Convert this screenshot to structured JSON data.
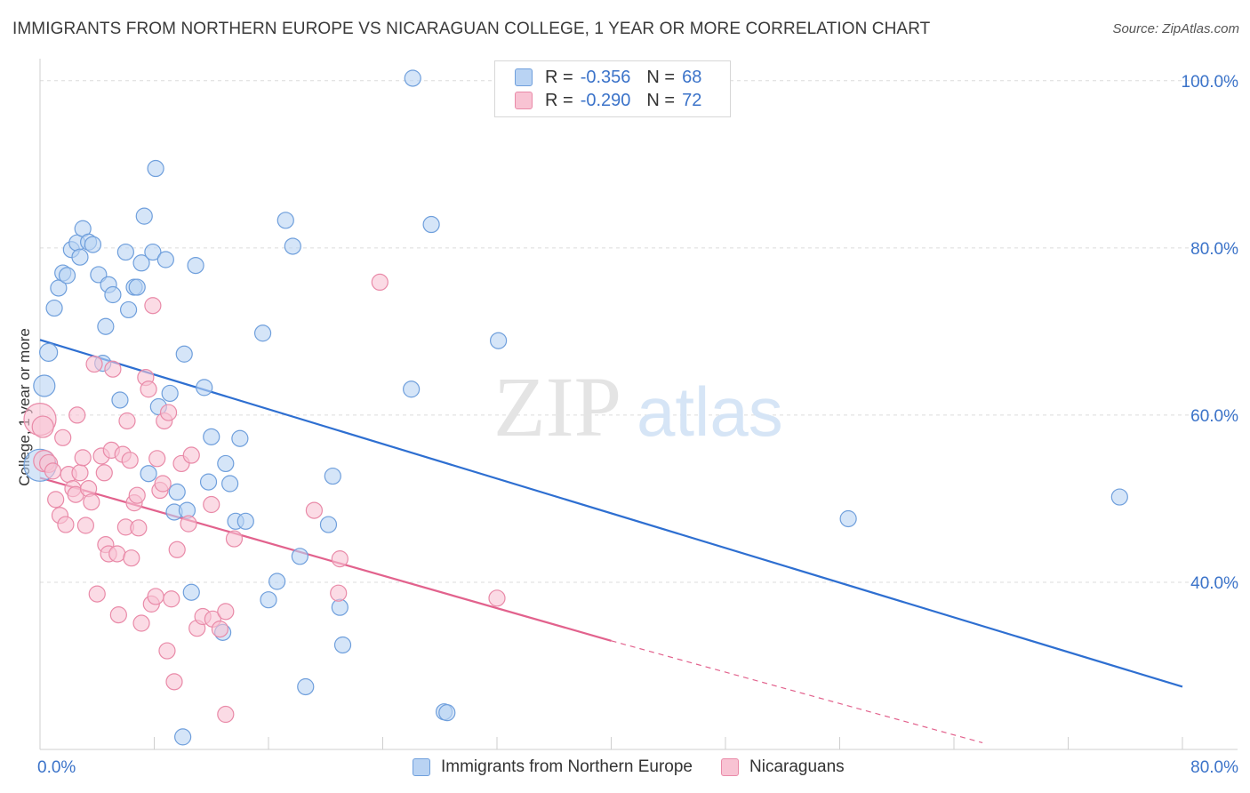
{
  "title": "IMMIGRANTS FROM NORTHERN EUROPE VS NICARAGUAN COLLEGE, 1 YEAR OR MORE CORRELATION CHART",
  "source": "Source: ZipAtlas.com",
  "watermark": {
    "zip": "ZIP",
    "atlas": "atlas"
  },
  "colors": {
    "blue_fill": "#b9d3f3",
    "blue_stroke": "#6f9fdc",
    "blue_line": "#2e6fd1",
    "pink_fill": "#f8c3d3",
    "pink_stroke": "#e98aa8",
    "pink_line": "#e2628d",
    "axis_text": "#3b73c9",
    "grid": "#dcdcdc"
  },
  "legend_top": [
    {
      "swatch": "blue",
      "r_label": "R =",
      "r_value": "-0.356",
      "n_label": "N =",
      "n_value": "68"
    },
    {
      "swatch": "pink",
      "r_label": "R =",
      "r_value": "-0.290",
      "n_label": "N =",
      "n_value": "72"
    }
  ],
  "chart_data": {
    "type": "scatter",
    "title": "IMMIGRANTS FROM NORTHERN EUROPE VS NICARAGUAN COLLEGE, 1 YEAR OR MORE CORRELATION CHART",
    "xlabel": "",
    "ylabel": "College, 1 year or more",
    "xlim": [
      0,
      80
    ],
    "ylim": [
      20,
      102
    ],
    "x_tick_labels": [
      "0.0%",
      "80.0%"
    ],
    "y_ticks": [
      40,
      60,
      80,
      100
    ],
    "y_tick_labels": [
      "40.0%",
      "60.0%",
      "80.0%",
      "100.0%"
    ],
    "grid": true,
    "legend_position": "bottom-center",
    "series": [
      {
        "name": "Immigrants from Northern Europe",
        "color": "blue",
        "points": [
          [
            0.0,
            54.0,
            18
          ],
          [
            0.3,
            63.5,
            12
          ],
          [
            0.6,
            67.5,
            10
          ],
          [
            1.0,
            72.8,
            9
          ],
          [
            1.3,
            75.2,
            9
          ],
          [
            1.6,
            77.0,
            9
          ],
          [
            1.9,
            76.7,
            9
          ],
          [
            2.2,
            79.8,
            9
          ],
          [
            2.6,
            80.6,
            9
          ],
          [
            2.8,
            78.9,
            9
          ],
          [
            3.0,
            82.3,
            9
          ],
          [
            3.4,
            80.7,
            9
          ],
          [
            3.7,
            80.4,
            9
          ],
          [
            4.1,
            76.8,
            9
          ],
          [
            4.4,
            66.2,
            9
          ],
          [
            4.6,
            70.6,
            9
          ],
          [
            4.8,
            75.6,
            9
          ],
          [
            5.1,
            74.4,
            9
          ],
          [
            5.6,
            61.8,
            9
          ],
          [
            6.0,
            79.5,
            9
          ],
          [
            6.2,
            72.6,
            9
          ],
          [
            6.6,
            75.3,
            9
          ],
          [
            6.8,
            75.3,
            9
          ],
          [
            7.1,
            78.2,
            9
          ],
          [
            7.3,
            83.8,
            9
          ],
          [
            7.6,
            53.0,
            9
          ],
          [
            7.9,
            79.5,
            9
          ],
          [
            8.1,
            89.5,
            9
          ],
          [
            8.3,
            61.0,
            9
          ],
          [
            8.8,
            78.6,
            9
          ],
          [
            9.1,
            62.6,
            9
          ],
          [
            9.4,
            48.4,
            9
          ],
          [
            9.6,
            50.8,
            9
          ],
          [
            10.1,
            67.3,
            9
          ],
          [
            10.3,
            48.6,
            9
          ],
          [
            10.6,
            38.8,
            9
          ],
          [
            10.9,
            77.9,
            9
          ],
          [
            11.5,
            63.3,
            9
          ],
          [
            11.8,
            52.0,
            9
          ],
          [
            12.0,
            57.4,
            9
          ],
          [
            12.8,
            34.0,
            9
          ],
          [
            13.0,
            54.2,
            9
          ],
          [
            13.3,
            51.8,
            9
          ],
          [
            13.7,
            47.3,
            9
          ],
          [
            14.0,
            57.2,
            9
          ],
          [
            14.4,
            47.3,
            9
          ],
          [
            15.6,
            69.8,
            9
          ],
          [
            16.0,
            37.9,
            9
          ],
          [
            16.6,
            40.1,
            9
          ],
          [
            17.2,
            83.3,
            9
          ],
          [
            17.7,
            80.2,
            9
          ],
          [
            18.2,
            43.1,
            9
          ],
          [
            18.6,
            27.5,
            9
          ],
          [
            20.2,
            46.9,
            9
          ],
          [
            20.5,
            52.7,
            9
          ],
          [
            21.0,
            37.0,
            9
          ],
          [
            21.2,
            32.5,
            9
          ],
          [
            26.0,
            63.1,
            9
          ],
          [
            26.1,
            100.3,
            9
          ],
          [
            27.4,
            82.8,
            9
          ],
          [
            28.3,
            24.5,
            9
          ],
          [
            28.5,
            24.4,
            9
          ],
          [
            32.1,
            68.9,
            9
          ],
          [
            10.0,
            21.5,
            9
          ],
          [
            56.6,
            47.6,
            9
          ],
          [
            75.6,
            50.2,
            9
          ]
        ],
        "trend": {
          "x1": 0,
          "y1": 69.0,
          "x2": 80,
          "y2": 27.5
        }
      },
      {
        "name": "Nicaraguans",
        "color": "pink",
        "points": [
          [
            0.0,
            59.5,
            18
          ],
          [
            0.2,
            58.6,
            12
          ],
          [
            0.3,
            54.5,
            12
          ],
          [
            0.6,
            54.2,
            10
          ],
          [
            0.9,
            53.3,
            9
          ],
          [
            1.1,
            49.9,
            9
          ],
          [
            1.4,
            48.0,
            9
          ],
          [
            1.6,
            57.3,
            9
          ],
          [
            1.8,
            46.9,
            9
          ],
          [
            2.0,
            52.9,
            9
          ],
          [
            2.3,
            51.2,
            9
          ],
          [
            2.5,
            50.5,
            9
          ],
          [
            2.6,
            60.0,
            9
          ],
          [
            2.8,
            53.1,
            9
          ],
          [
            3.0,
            54.9,
            9
          ],
          [
            3.2,
            46.8,
            9
          ],
          [
            3.4,
            51.2,
            9
          ],
          [
            3.6,
            49.6,
            9
          ],
          [
            3.8,
            66.1,
            9
          ],
          [
            4.0,
            38.6,
            9
          ],
          [
            4.3,
            55.1,
            9
          ],
          [
            4.5,
            53.1,
            9
          ],
          [
            4.6,
            44.5,
            9
          ],
          [
            4.8,
            43.4,
            9
          ],
          [
            5.0,
            55.8,
            9
          ],
          [
            5.1,
            65.5,
            9
          ],
          [
            5.4,
            43.4,
            9
          ],
          [
            5.5,
            36.1,
            9
          ],
          [
            5.8,
            55.3,
            9
          ],
          [
            6.0,
            46.6,
            9
          ],
          [
            6.1,
            59.3,
            9
          ],
          [
            6.3,
            54.6,
            9
          ],
          [
            6.4,
            42.9,
            9
          ],
          [
            6.6,
            49.5,
            9
          ],
          [
            6.8,
            50.4,
            9
          ],
          [
            6.9,
            46.5,
            9
          ],
          [
            7.1,
            35.1,
            9
          ],
          [
            7.4,
            64.5,
            9
          ],
          [
            7.6,
            63.1,
            9
          ],
          [
            7.8,
            37.4,
            9
          ],
          [
            7.9,
            73.1,
            9
          ],
          [
            8.1,
            38.3,
            9
          ],
          [
            8.2,
            54.8,
            9
          ],
          [
            8.4,
            51.0,
            9
          ],
          [
            8.6,
            51.8,
            9
          ],
          [
            8.7,
            59.3,
            9
          ],
          [
            8.9,
            31.8,
            9
          ],
          [
            9.0,
            60.3,
            9
          ],
          [
            9.2,
            38.0,
            9
          ],
          [
            9.4,
            28.1,
            9
          ],
          [
            9.6,
            43.9,
            9
          ],
          [
            9.9,
            54.2,
            9
          ],
          [
            10.4,
            47.0,
            9
          ],
          [
            10.6,
            55.2,
            9
          ],
          [
            11.0,
            34.5,
            9
          ],
          [
            11.4,
            35.9,
            9
          ],
          [
            12.0,
            49.3,
            9
          ],
          [
            12.1,
            35.6,
            9
          ],
          [
            12.6,
            34.4,
            9
          ],
          [
            13.0,
            24.2,
            9
          ],
          [
            13.0,
            36.5,
            9
          ],
          [
            13.6,
            45.2,
            9
          ],
          [
            19.2,
            48.6,
            9
          ],
          [
            20.9,
            38.7,
            9
          ],
          [
            21.0,
            42.8,
            9
          ],
          [
            23.8,
            75.9,
            9
          ],
          [
            32.0,
            38.1,
            9
          ]
        ],
        "trend": {
          "x1": 0,
          "y1": 52.5,
          "x2": 40,
          "y2": 33.0
        },
        "trend_extension": {
          "x1": 40,
          "y1": 33.0,
          "x2": 66,
          "y2": 20.8
        }
      }
    ]
  },
  "legend_bottom": [
    {
      "label": "Immigrants from Northern Europe",
      "swatch": "blue"
    },
    {
      "label": "Nicaraguans",
      "swatch": "pink"
    }
  ]
}
